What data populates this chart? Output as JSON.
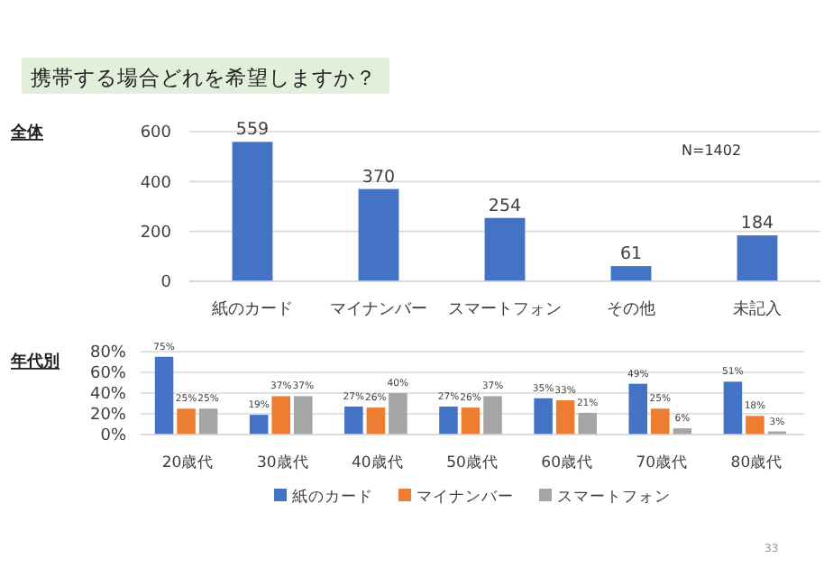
{
  "chart_data": [
    {
      "type": "bar",
      "title": "携帯する場合どれを希望しますか？",
      "subtitle": "全体",
      "categories": [
        "紙のカード",
        "マイナンバー",
        "スマートフォン",
        "その他",
        "未記入"
      ],
      "values": [
        559,
        370,
        254,
        61,
        184
      ],
      "color": "#4472c4",
      "ylim": [
        0,
        600
      ],
      "yticks": [
        0,
        200,
        400,
        600
      ],
      "grid": "y",
      "data_labels": true,
      "annotations": [
        "N=1402"
      ]
    },
    {
      "type": "bar",
      "title": "年代別",
      "categories": [
        "20歳代",
        "30歳代",
        "40歳代",
        "50歳代",
        "60歳代",
        "70歳代",
        "80歳代"
      ],
      "series": [
        {
          "name": "紙のカード",
          "color": "#4472c4",
          "values": [
            75,
            19,
            27,
            27,
            35,
            49,
            51
          ],
          "value_labels": [
            "75%",
            "19%",
            "27%",
            "27%",
            "35%",
            "49%",
            "51%"
          ]
        },
        {
          "name": "マイナンバー",
          "color": "#ed7d31",
          "values": [
            25,
            37,
            26,
            26,
            33,
            25,
            18
          ],
          "value_labels": [
            "25%",
            "37%",
            "26%",
            "26%",
            "33%",
            "25%",
            "18%"
          ]
        },
        {
          "name": "スマートフォン",
          "color": "#a5a5a5",
          "values": [
            25,
            37,
            40,
            37,
            21,
            6,
            3
          ],
          "value_labels": [
            "25%",
            "37%",
            "40%",
            "37%",
            "21%",
            "6%",
            "3%"
          ]
        }
      ],
      "ylim": [
        0,
        80
      ],
      "yticks": [
        {
          "value": 0,
          "label": "0%"
        },
        {
          "value": 20,
          "label": "20%"
        },
        {
          "value": 40,
          "label": "40%"
        },
        {
          "value": 60,
          "label": "60%"
        },
        {
          "value": 80,
          "label": "80%"
        }
      ],
      "grid": "y",
      "legend": "bottom",
      "annotations": [
        "33"
      ]
    }
  ]
}
